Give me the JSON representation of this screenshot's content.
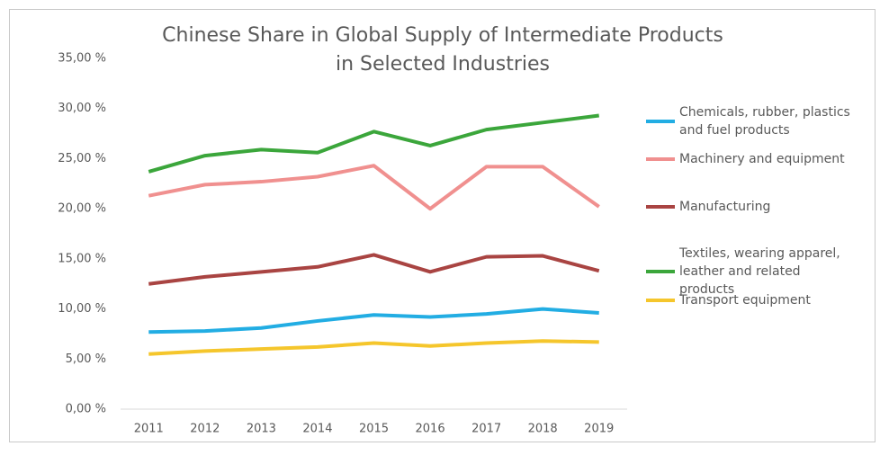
{
  "chart_data": {
    "type": "line",
    "title": [
      "Chinese Share in Global Supply of Intermediate Products",
      "in Selected Industries"
    ],
    "categories": [
      "2011",
      "2012",
      "2013",
      "2014",
      "2015",
      "2016",
      "2017",
      "2018",
      "2019"
    ],
    "series": [
      {
        "name": "Chemicals, rubber, plastics and fuel products",
        "color": "#22ade3",
        "values": [
          7.7,
          7.8,
          8.1,
          8.8,
          9.4,
          9.2,
          9.5,
          10.0,
          9.6
        ]
      },
      {
        "name": "Machinery and equipment",
        "color": "#f0908f",
        "values": [
          21.3,
          22.4,
          22.7,
          23.2,
          24.3,
          20.0,
          24.2,
          24.2,
          20.2
        ]
      },
      {
        "name": "Manufacturing",
        "color": "#a94442",
        "values": [
          12.5,
          13.2,
          13.7,
          14.2,
          15.4,
          13.7,
          15.2,
          15.3,
          13.8
        ]
      },
      {
        "name": "Textiles, wearing apparel, leather and related products",
        "color": "#3ba63b",
        "values": [
          23.7,
          25.3,
          25.9,
          25.6,
          27.7,
          26.3,
          27.9,
          28.6,
          29.3
        ]
      },
      {
        "name": "Transport equipment",
        "color": "#f5c62c",
        "values": [
          5.5,
          5.8,
          6.0,
          6.2,
          6.6,
          6.3,
          6.6,
          6.8,
          6.7
        ]
      }
    ],
    "ylim": [
      0,
      35
    ],
    "yticks": [
      {
        "value": 0,
        "label": "0,00 %"
      },
      {
        "value": 5,
        "label": "5,00 %"
      },
      {
        "value": 10,
        "label": "10,00 %"
      },
      {
        "value": 15,
        "label": "15,00 %"
      },
      {
        "value": 20,
        "label": "20,00 %"
      },
      {
        "value": 25,
        "label": "25,00 %"
      },
      {
        "value": 30,
        "label": "30,00 %"
      },
      {
        "value": 35,
        "label": "35,00 %"
      }
    ],
    "grid": false,
    "legend": "right"
  }
}
